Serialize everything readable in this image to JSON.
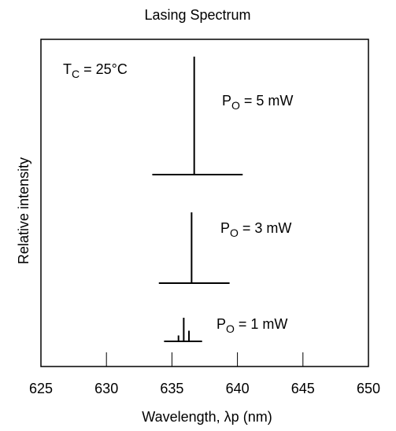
{
  "chart_data": {
    "type": "line",
    "title": "Lasing Spectrum",
    "xlabel": "Wavelength,  λp  (nm)",
    "ylabel": "Relative intensity",
    "xlim": [
      625,
      650
    ],
    "xticks": [
      625,
      630,
      635,
      640,
      645,
      650
    ],
    "grid": false,
    "condition": {
      "symbol": "T",
      "subscript": "C",
      "text": " = 25°C"
    },
    "series": [
      {
        "label": {
          "symbol": "P",
          "subscript": "O",
          "text": " = 5 mW"
        },
        "baseline_wavelength_range": [
          633.5,
          640.4
        ],
        "peaks": [
          {
            "wavelength": 636.7,
            "relative_height": 1.0
          }
        ]
      },
      {
        "label": {
          "symbol": "P",
          "subscript": "O",
          "text": " = 3 mW"
        },
        "baseline_wavelength_range": [
          634.0,
          639.4
        ],
        "peaks": [
          {
            "wavelength": 636.5,
            "relative_height": 1.0
          }
        ]
      },
      {
        "label": {
          "symbol": "P",
          "subscript": "O",
          "text": " = 1 mW"
        },
        "baseline_wavelength_range": [
          634.4,
          637.3
        ],
        "peaks": [
          {
            "wavelength": 635.5,
            "relative_height": 0.25
          },
          {
            "wavelength": 635.9,
            "relative_height": 1.0
          },
          {
            "wavelength": 636.3,
            "relative_height": 0.45
          }
        ]
      }
    ]
  }
}
